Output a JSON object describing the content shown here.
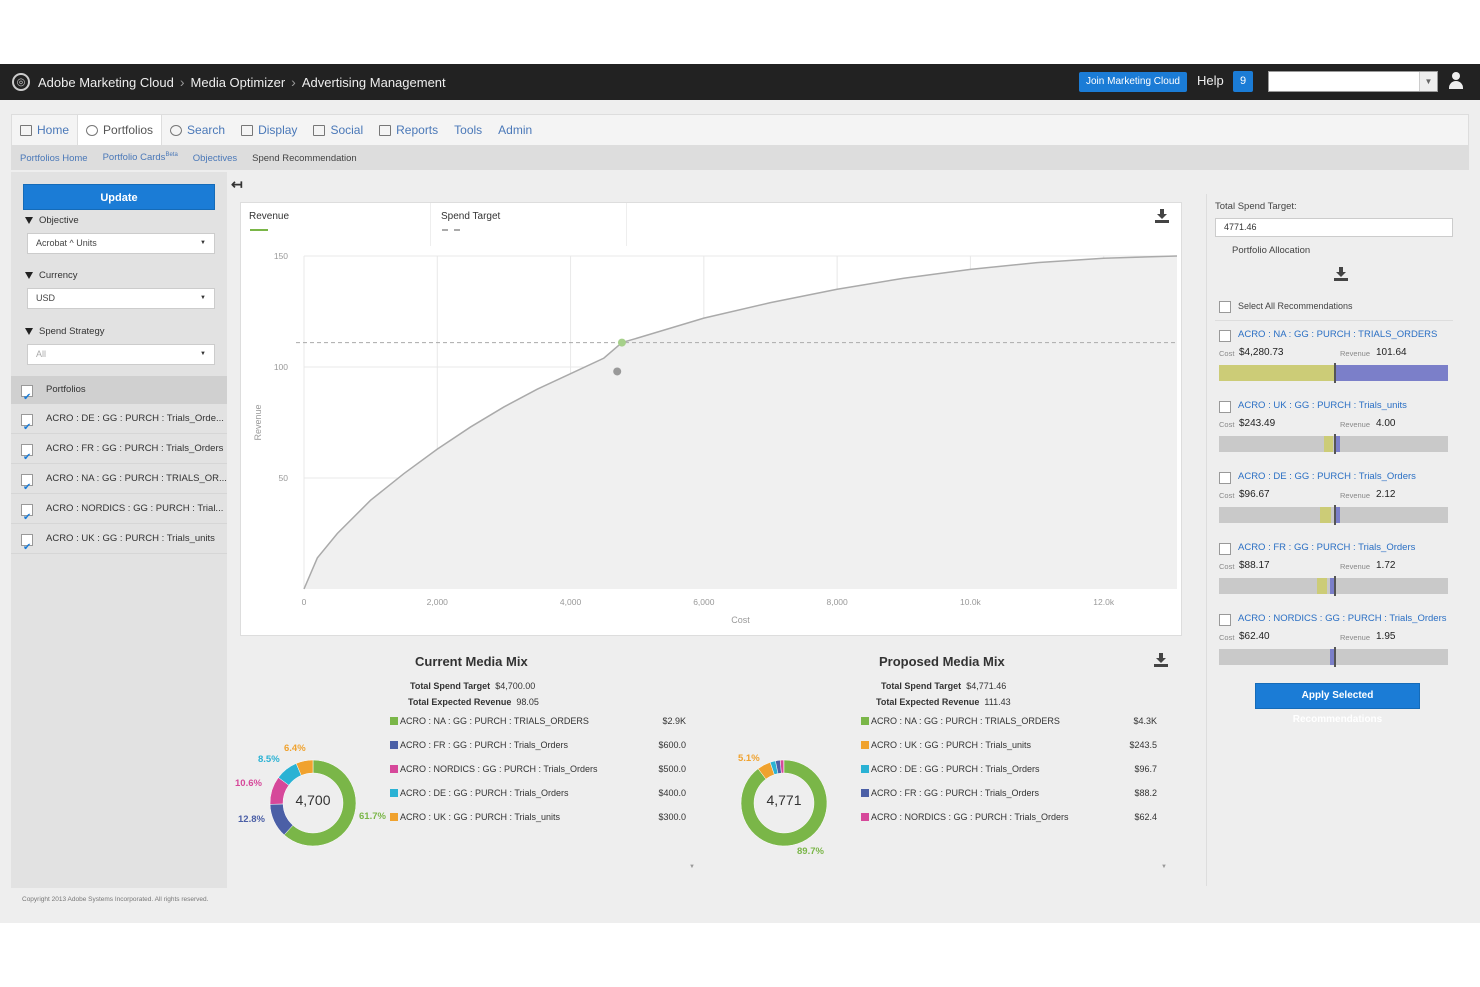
{
  "header": {
    "breadcrumbs": [
      "Adobe Marketing Cloud",
      "Media Optimizer",
      "Advertising Management"
    ],
    "join_label": "Join Marketing Cloud",
    "help_label": "Help",
    "notif_count": "9"
  },
  "nav": {
    "tabs": [
      {
        "label": "Home",
        "icon": "home-icon"
      },
      {
        "label": "Portfolios",
        "icon": "gears-icon",
        "active": true
      },
      {
        "label": "Search",
        "icon": "search-icon"
      },
      {
        "label": "Display",
        "icon": "display-icon"
      },
      {
        "label": "Social",
        "icon": "social-icon"
      },
      {
        "label": "Reports",
        "icon": "reports-icon"
      },
      {
        "label": "Tools"
      },
      {
        "label": "Admin"
      }
    ],
    "subnav": {
      "portfolios_home": "Portfolios Home",
      "portfolio_cards": "Portfolio Cards",
      "portfolio_cards_badge": "Beta",
      "objectives": "Objectives",
      "spend_recommendation": "Spend Recommendation"
    }
  },
  "sidebar": {
    "update_label": "Update",
    "objective_label": "Objective",
    "objective_value": "Acrobat ^ Units",
    "currency_label": "Currency",
    "currency_value": "USD",
    "strategy_label": "Spend Strategy",
    "strategy_value": "All",
    "portfolios_label": "Portfolios",
    "portfolios": [
      "ACRO : DE : GG : PURCH : Trials_Orde...",
      "ACRO : FR : GG : PURCH : Trials_Orders",
      "ACRO : NA : GG : PURCH : TRIALS_OR...",
      "ACRO : NORDICS : GG : PURCH : Trial...",
      "ACRO : UK : GG : PURCH : Trials_units"
    ]
  },
  "chart_tabs": {
    "revenue": "Revenue",
    "spend_target": "Spend Target"
  },
  "chart_data": {
    "type": "line",
    "xlabel": "Cost",
    "ylabel": "Revenue",
    "xlim": [
      0,
      13100
    ],
    "ylim": [
      0,
      150
    ],
    "x_ticks": [
      "0",
      "2,000",
      "4,000",
      "6,000",
      "8,000",
      "10.0k",
      "12.0k"
    ],
    "x_tick_values": [
      0,
      2000,
      4000,
      6000,
      8000,
      10000,
      12000
    ],
    "y_ticks": [
      "50",
      "100",
      "150"
    ],
    "y_tick_values": [
      50,
      100,
      150
    ],
    "series": [
      {
        "name": "Revenue",
        "x": [
          0,
          200,
          500,
          1000,
          1500,
          2000,
          2500,
          3000,
          3500,
          4000,
          4500,
          4771,
          5000,
          6000,
          7000,
          8000,
          9000,
          10000,
          11000,
          12000,
          13100
        ],
        "y": [
          0,
          14,
          25,
          40,
          52,
          63,
          73,
          82,
          90,
          97,
          104,
          111,
          113,
          122,
          129,
          135,
          140,
          144,
          147,
          149,
          150
        ]
      }
    ],
    "spend_target_revenue": 111,
    "proposed_point": [
      4771,
      111
    ],
    "current_point": [
      4700,
      98
    ]
  },
  "current_mix": {
    "title": "Current Media Mix",
    "spend_label": "Total Spend Target",
    "spend_value": "$4,700.00",
    "rev_label": "Total Expected Revenue",
    "rev_value": "98.05",
    "center": "4,700",
    "slices": [
      {
        "label": "ACRO : NA : GG : PURCH : TRIALS_ORDERS",
        "value": "$2.9K",
        "pct": 61.7,
        "pct_label": "61.7%",
        "color": "#7ab648"
      },
      {
        "label": "ACRO : FR : GG : PURCH : Trials_Orders",
        "value": "$600.0",
        "pct": 12.8,
        "pct_label": "12.8%",
        "color": "#4b5fa6"
      },
      {
        "label": "ACRO : NORDICS : GG : PURCH : Trials_Orders",
        "value": "$500.0",
        "pct": 10.6,
        "pct_label": "10.6%",
        "color": "#d6489a"
      },
      {
        "label": "ACRO : DE : GG : PURCH : Trials_Orders",
        "value": "$400.0",
        "pct": 8.5,
        "pct_label": "8.5%",
        "color": "#2ab2d4"
      },
      {
        "label": "ACRO : UK : GG : PURCH : Trials_units",
        "value": "$300.0",
        "pct": 6.4,
        "pct_label": "6.4%",
        "color": "#f0a22e"
      }
    ]
  },
  "proposed_mix": {
    "title": "Proposed Media Mix",
    "spend_label": "Total Spend Target",
    "spend_value": "$4,771.46",
    "rev_label": "Total Expected Revenue",
    "rev_value": "111.43",
    "center": "4,771",
    "slices": [
      {
        "label": "ACRO : NA : GG : PURCH : TRIALS_ORDERS",
        "value": "$4.3K",
        "pct": 89.7,
        "pct_label": "89.7%",
        "color": "#7ab648"
      },
      {
        "label": "ACRO : UK : GG : PURCH : Trials_units",
        "value": "$243.5",
        "pct": 5.1,
        "pct_label": "5.1%",
        "color": "#f0a22e"
      },
      {
        "label": "ACRO : DE : GG : PURCH : Trials_Orders",
        "value": "$96.7",
        "pct": 2.0,
        "color": "#2ab2d4"
      },
      {
        "label": "ACRO : FR : GG : PURCH : Trials_Orders",
        "value": "$88.2",
        "pct": 1.8,
        "color": "#4b5fa6"
      },
      {
        "label": "ACRO : NORDICS : GG : PURCH : Trials_Orders",
        "value": "$62.4",
        "pct": 1.3,
        "color": "#d6489a"
      }
    ]
  },
  "right": {
    "spend_target_label": "Total Spend Target:",
    "spend_target_value": "4771.46",
    "allocation_label": "Portfolio Allocation",
    "select_all_label": "Select All Recommendations",
    "cost_label": "Cost",
    "revenue_label": "Revenue",
    "recs": [
      {
        "title": "ACRO : NA : GG : PURCH : TRIALS_ORDERS",
        "cost": "$4,280.73",
        "revenue": "101.64",
        "current_frac": 0.5,
        "proposed_frac": 1.0
      },
      {
        "title": "ACRO : UK : GG : PURCH : Trials_units",
        "cost": "$243.49",
        "revenue": "4.00",
        "current_frac": 0.46,
        "proposed_frac": 0.52
      },
      {
        "title": "ACRO : DE : GG : PURCH : Trials_Orders",
        "cost": "$96.67",
        "revenue": "2.12",
        "current_frac": 0.44,
        "proposed_frac": 0.52
      },
      {
        "title": "ACRO : FR : GG : PURCH : Trials_Orders",
        "cost": "$88.17",
        "revenue": "1.72",
        "current_frac": 0.43,
        "proposed_frac": 0.5
      },
      {
        "title": "ACRO : NORDICS : GG : PURCH : Trials_Orders",
        "cost": "$62.40",
        "revenue": "1.95",
        "current_frac": 0.5,
        "proposed_frac": 0.5
      }
    ],
    "apply_label": "Apply Selected Recommendations"
  },
  "footer": {
    "copyright": "Copyright 2013 Adobe Systems Incorporated. All rights reserved."
  }
}
